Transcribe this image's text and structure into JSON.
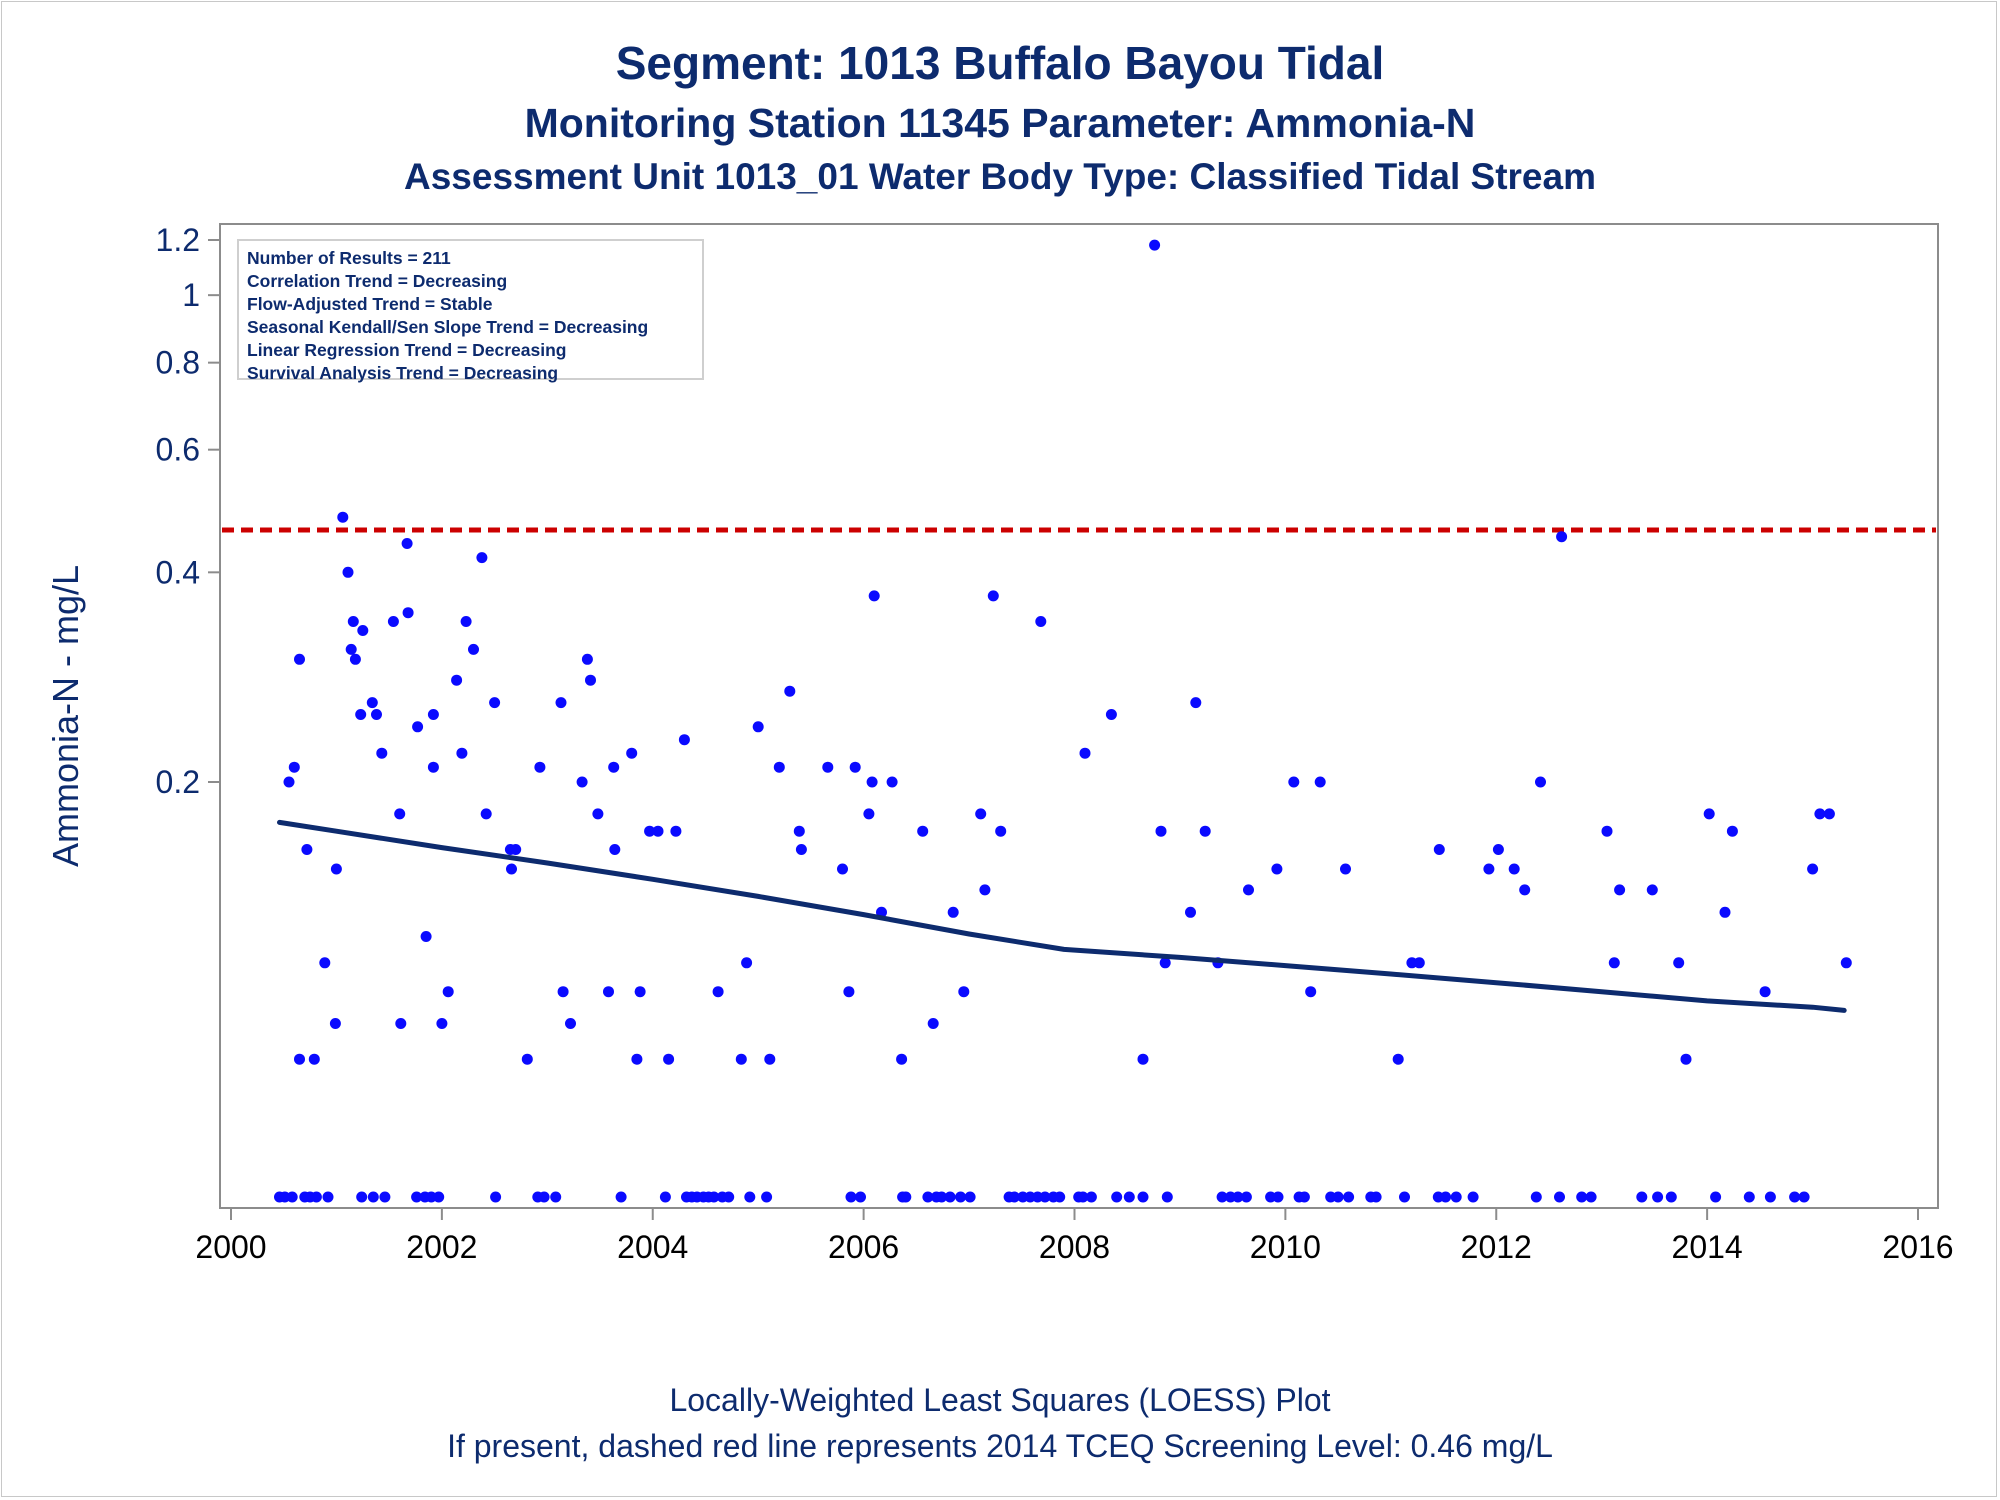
{
  "titles": {
    "line1": "Segment: 1013  Buffalo Bayou Tidal",
    "line2": "Monitoring Station 11345 Parameter: Ammonia-N",
    "line3": "Assessment Unit 1013_01   Water Body Type: Classified Tidal Stream"
  },
  "stats_box": {
    "line1": "Number of Results = 211",
    "line2": "Correlation Trend = Decreasing",
    "line3": "Flow-Adjusted Trend = Stable",
    "line4": "Seasonal Kendall/Sen Slope Trend = Decreasing",
    "line5": "Linear Regression Trend = Decreasing",
    "line6": "Survival Analysis Trend = Decreasing"
  },
  "footnotes": {
    "line1": "Locally-Weighted Least Squares (LOESS) Plot",
    "line2": "If present, dashed red line represents 2014 TCEQ Screening Level: 0.46 mg/L"
  },
  "colors": {
    "text": "#0d2b6e",
    "points": "#0a0aff",
    "loess": "#0d2b6e",
    "screening_line": "#cc0000",
    "axis": "#8c8c8c"
  },
  "chart_data": {
    "type": "scatter",
    "ylabel": "Ammonia-N - mg/L",
    "xlabel": "",
    "xlim": [
      2000,
      2016
    ],
    "ylim": [
      0.02,
      1.25
    ],
    "y_scale": "log",
    "x_ticks": [
      2000,
      2002,
      2004,
      2006,
      2008,
      2010,
      2012,
      2014,
      2016
    ],
    "y_ticks": [
      0.2,
      0.4,
      0.6,
      0.8,
      1,
      1.2
    ],
    "y_tick_labels": [
      "0.2",
      "0.4",
      "0.6",
      "0.8",
      "1",
      "1.2"
    ],
    "screening_level": {
      "value": 0.46,
      "style": "dashed"
    },
    "loess": [
      [
        2000.46,
        0.175
      ],
      [
        2001.0,
        0.17
      ],
      [
        2002.0,
        0.161
      ],
      [
        2003.0,
        0.153
      ],
      [
        2004.0,
        0.145
      ],
      [
        2005.0,
        0.137
      ],
      [
        2006.0,
        0.129
      ],
      [
        2007.0,
        0.121
      ],
      [
        2007.9,
        0.115
      ],
      [
        2009.0,
        0.112
      ],
      [
        2010.0,
        0.109
      ],
      [
        2011.0,
        0.106
      ],
      [
        2012.0,
        0.103
      ],
      [
        2013.0,
        0.1
      ],
      [
        2014.0,
        0.097
      ],
      [
        2015.0,
        0.095
      ],
      [
        2015.3,
        0.094
      ]
    ],
    "points": [
      [
        2000.46,
        0.03
      ],
      [
        2000.55,
        0.2
      ],
      [
        2000.6,
        0.21
      ],
      [
        2000.65,
        0.3
      ],
      [
        2000.65,
        0.08
      ],
      [
        2000.72,
        0.16
      ],
      [
        2000.79,
        0.08
      ],
      [
        2000.89,
        0.11
      ],
      [
        2000.99,
        0.09
      ],
      [
        2001.0,
        0.15
      ],
      [
        2001.06,
        0.48
      ],
      [
        2001.11,
        0.4
      ],
      [
        2001.14,
        0.31
      ],
      [
        2001.16,
        0.34
      ],
      [
        2001.18,
        0.3
      ],
      [
        2001.23,
        0.25
      ],
      [
        2001.25,
        0.33
      ],
      [
        2001.34,
        0.26
      ],
      [
        2001.38,
        0.25
      ],
      [
        2001.43,
        0.22
      ],
      [
        2001.54,
        0.34
      ],
      [
        2001.6,
        0.18
      ],
      [
        2001.61,
        0.09
      ],
      [
        2001.67,
        0.44
      ],
      [
        2001.68,
        0.35
      ],
      [
        2001.77,
        0.24
      ],
      [
        2001.85,
        0.12
      ],
      [
        2001.92,
        0.21
      ],
      [
        2001.92,
        0.25
      ],
      [
        2002.0,
        0.09
      ],
      [
        2002.06,
        0.1
      ],
      [
        2002.14,
        0.28
      ],
      [
        2002.19,
        0.22
      ],
      [
        2002.23,
        0.34
      ],
      [
        2002.3,
        0.31
      ],
      [
        2002.38,
        0.42
      ],
      [
        2002.42,
        0.18
      ],
      [
        2002.5,
        0.26
      ],
      [
        2002.65,
        0.16
      ],
      [
        2002.66,
        0.15
      ],
      [
        2002.7,
        0.16
      ],
      [
        2002.81,
        0.08
      ],
      [
        2002.93,
        0.21
      ],
      [
        2003.13,
        0.26
      ],
      [
        2003.15,
        0.1
      ],
      [
        2003.22,
        0.09
      ],
      [
        2003.33,
        0.2
      ],
      [
        2003.38,
        0.3
      ],
      [
        2003.41,
        0.28
      ],
      [
        2003.48,
        0.18
      ],
      [
        2003.58,
        0.1
      ],
      [
        2003.63,
        0.21
      ],
      [
        2003.64,
        0.16
      ],
      [
        2003.8,
        0.22
      ],
      [
        2003.85,
        0.08
      ],
      [
        2003.88,
        0.1
      ],
      [
        2003.97,
        0.17
      ],
      [
        2004.05,
        0.17
      ],
      [
        2004.15,
        0.08
      ],
      [
        2004.22,
        0.17
      ],
      [
        2004.3,
        0.23
      ],
      [
        2004.62,
        0.1
      ],
      [
        2004.84,
        0.08
      ],
      [
        2004.89,
        0.11
      ],
      [
        2005.0,
        0.24
      ],
      [
        2005.11,
        0.08
      ],
      [
        2005.2,
        0.21
      ],
      [
        2005.3,
        0.27
      ],
      [
        2005.39,
        0.17
      ],
      [
        2005.41,
        0.16
      ],
      [
        2005.66,
        0.21
      ],
      [
        2005.8,
        0.15
      ],
      [
        2005.86,
        0.1
      ],
      [
        2005.92,
        0.21
      ],
      [
        2006.05,
        0.18
      ],
      [
        2006.08,
        0.2
      ],
      [
        2006.1,
        0.37
      ],
      [
        2006.17,
        0.13
      ],
      [
        2006.27,
        0.2
      ],
      [
        2006.36,
        0.08
      ],
      [
        2006.56,
        0.17
      ],
      [
        2006.66,
        0.09
      ],
      [
        2006.85,
        0.13
      ],
      [
        2006.95,
        0.1
      ],
      [
        2007.11,
        0.18
      ],
      [
        2007.15,
        0.14
      ],
      [
        2007.23,
        0.37
      ],
      [
        2007.3,
        0.17
      ],
      [
        2007.68,
        0.34
      ],
      [
        2008.1,
        0.22
      ],
      [
        2008.35,
        0.25
      ],
      [
        2008.65,
        0.08
      ],
      [
        2008.76,
        1.18
      ],
      [
        2008.82,
        0.17
      ],
      [
        2008.86,
        0.11
      ],
      [
        2009.1,
        0.13
      ],
      [
        2009.15,
        0.26
      ],
      [
        2009.24,
        0.17
      ],
      [
        2009.36,
        0.11
      ],
      [
        2009.65,
        0.14
      ],
      [
        2009.92,
        0.15
      ],
      [
        2010.08,
        0.2
      ],
      [
        2010.24,
        0.1
      ],
      [
        2010.33,
        0.2
      ],
      [
        2010.57,
        0.15
      ],
      [
        2011.07,
        0.08
      ],
      [
        2011.2,
        0.11
      ],
      [
        2011.27,
        0.11
      ],
      [
        2011.46,
        0.16
      ],
      [
        2011.93,
        0.15
      ],
      [
        2012.02,
        0.16
      ],
      [
        2012.17,
        0.15
      ],
      [
        2012.27,
        0.14
      ],
      [
        2012.42,
        0.2
      ],
      [
        2012.62,
        0.45
      ],
      [
        2013.05,
        0.17
      ],
      [
        2013.12,
        0.11
      ],
      [
        2013.17,
        0.14
      ],
      [
        2013.48,
        0.14
      ],
      [
        2013.73,
        0.11
      ],
      [
        2013.8,
        0.08
      ],
      [
        2014.02,
        0.18
      ],
      [
        2014.17,
        0.13
      ],
      [
        2014.24,
        0.17
      ],
      [
        2014.55,
        0.1
      ],
      [
        2015.0,
        0.15
      ],
      [
        2015.07,
        0.18
      ],
      [
        2015.16,
        0.18
      ],
      [
        2015.32,
        0.11
      ],
      [
        2000.51,
        0.03
      ],
      [
        2000.58,
        0.03
      ],
      [
        2000.7,
        0.03
      ],
      [
        2000.75,
        0.03
      ],
      [
        2000.81,
        0.03
      ],
      [
        2000.92,
        0.03
      ],
      [
        2001.24,
        0.03
      ],
      [
        2001.35,
        0.03
      ],
      [
        2001.46,
        0.03
      ],
      [
        2001.76,
        0.03
      ],
      [
        2001.84,
        0.03
      ],
      [
        2001.9,
        0.03
      ],
      [
        2001.97,
        0.03
      ],
      [
        2002.51,
        0.03
      ],
      [
        2002.91,
        0.03
      ],
      [
        2002.97,
        0.03
      ],
      [
        2003.08,
        0.03
      ],
      [
        2003.7,
        0.03
      ],
      [
        2004.12,
        0.03
      ],
      [
        2004.32,
        0.03
      ],
      [
        2004.37,
        0.03
      ],
      [
        2004.42,
        0.03
      ],
      [
        2004.48,
        0.03
      ],
      [
        2004.53,
        0.03
      ],
      [
        2004.58,
        0.03
      ],
      [
        2004.66,
        0.03
      ],
      [
        2004.72,
        0.03
      ],
      [
        2004.92,
        0.03
      ],
      [
        2005.08,
        0.03
      ],
      [
        2005.88,
        0.03
      ],
      [
        2005.97,
        0.03
      ],
      [
        2006.37,
        0.03
      ],
      [
        2006.4,
        0.03
      ],
      [
        2006.61,
        0.03
      ],
      [
        2006.69,
        0.03
      ],
      [
        2006.74,
        0.03
      ],
      [
        2006.82,
        0.03
      ],
      [
        2006.92,
        0.03
      ],
      [
        2007.01,
        0.03
      ],
      [
        2007.38,
        0.03
      ],
      [
        2007.43,
        0.03
      ],
      [
        2007.51,
        0.03
      ],
      [
        2007.58,
        0.03
      ],
      [
        2007.65,
        0.03
      ],
      [
        2007.72,
        0.03
      ],
      [
        2007.8,
        0.03
      ],
      [
        2007.86,
        0.03
      ],
      [
        2008.04,
        0.03
      ],
      [
        2008.08,
        0.03
      ],
      [
        2008.16,
        0.03
      ],
      [
        2008.4,
        0.03
      ],
      [
        2008.52,
        0.03
      ],
      [
        2008.65,
        0.03
      ],
      [
        2008.88,
        0.03
      ],
      [
        2009.4,
        0.03
      ],
      [
        2009.48,
        0.03
      ],
      [
        2009.55,
        0.03
      ],
      [
        2009.63,
        0.03
      ],
      [
        2009.86,
        0.03
      ],
      [
        2009.93,
        0.03
      ],
      [
        2010.13,
        0.03
      ],
      [
        2010.18,
        0.03
      ],
      [
        2010.43,
        0.03
      ],
      [
        2010.5,
        0.03
      ],
      [
        2010.6,
        0.03
      ],
      [
        2010.81,
        0.03
      ],
      [
        2010.86,
        0.03
      ],
      [
        2011.13,
        0.03
      ],
      [
        2011.45,
        0.03
      ],
      [
        2011.52,
        0.03
      ],
      [
        2011.62,
        0.03
      ],
      [
        2011.78,
        0.03
      ],
      [
        2012.38,
        0.03
      ],
      [
        2012.6,
        0.03
      ],
      [
        2012.81,
        0.03
      ],
      [
        2012.9,
        0.03
      ],
      [
        2013.38,
        0.03
      ],
      [
        2013.53,
        0.03
      ],
      [
        2013.66,
        0.03
      ],
      [
        2014.08,
        0.03
      ],
      [
        2014.4,
        0.03
      ],
      [
        2014.6,
        0.03
      ],
      [
        2014.83,
        0.03
      ],
      [
        2014.92,
        0.03
      ]
    ]
  }
}
